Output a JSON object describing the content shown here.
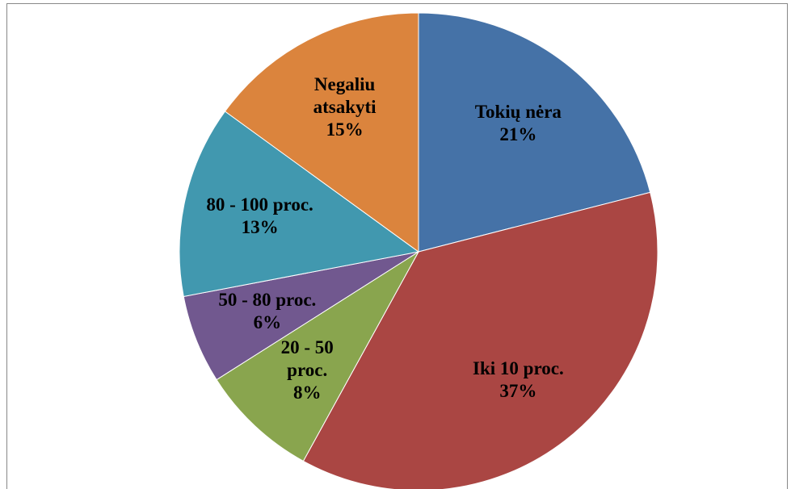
{
  "chart_data": {
    "type": "pie",
    "categories": [
      "Tokių nėra",
      "Iki 10 proc.",
      "20 - 50 proc.",
      "50 - 80 proc.",
      "80 - 100 proc.",
      "Negaliu atsakyti"
    ],
    "values": [
      21,
      37,
      8,
      6,
      13,
      15
    ],
    "value_labels": [
      "21%",
      "37%",
      "8%",
      "6%",
      "13%",
      "15%"
    ],
    "colors": [
      "#4572a7",
      "#aa4643",
      "#89a54e",
      "#71588f",
      "#4198af",
      "#db843d"
    ]
  }
}
